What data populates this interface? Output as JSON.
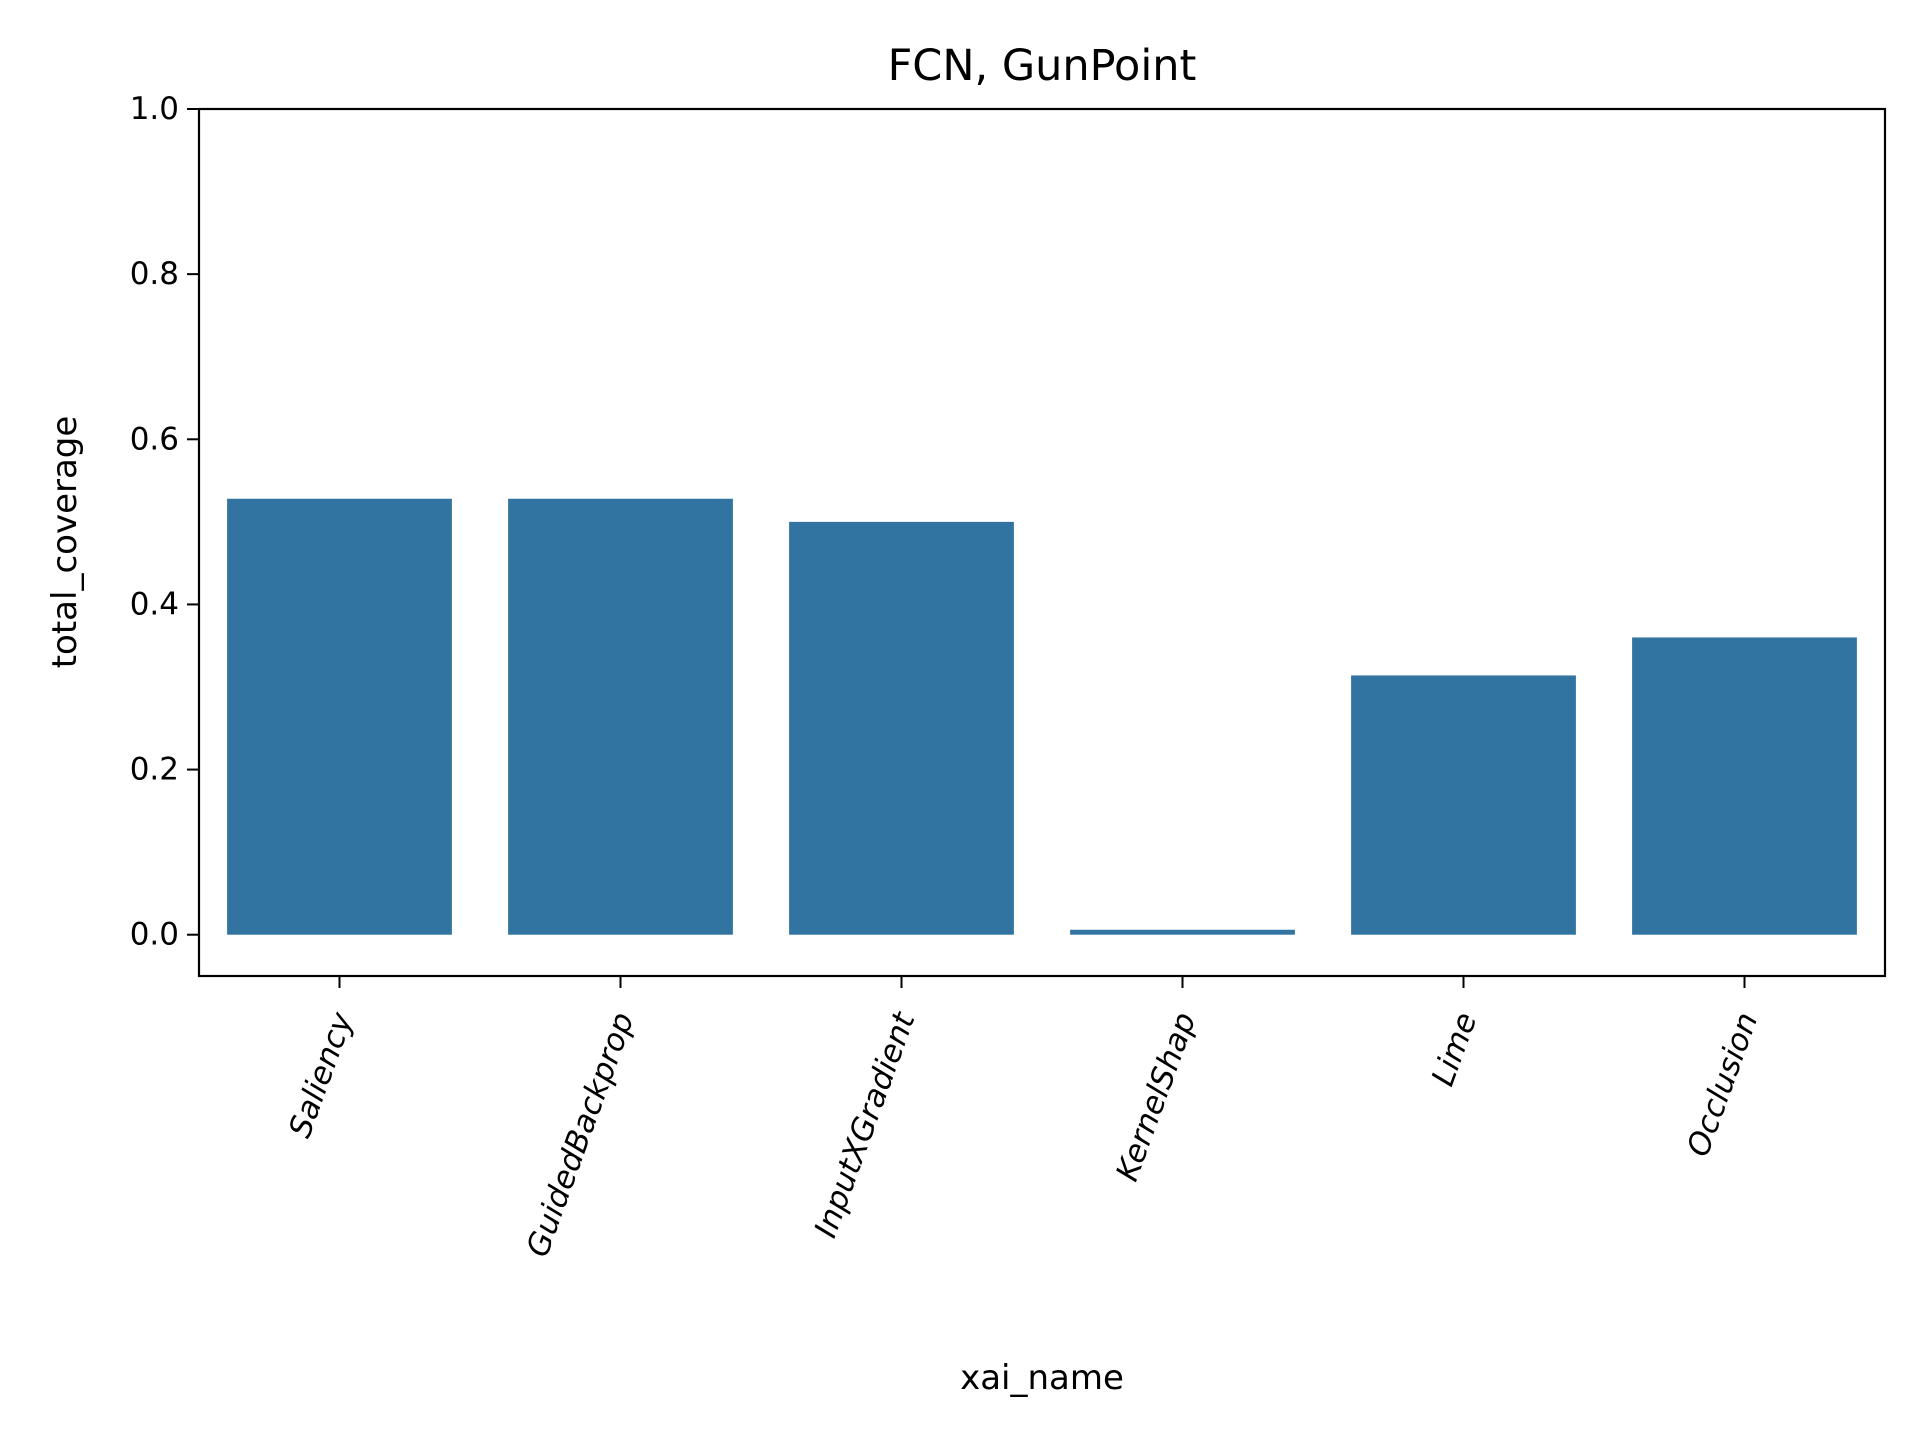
{
  "chart_data": {
    "type": "bar",
    "title": "FCN, GunPoint",
    "xlabel": "xai_name",
    "ylabel": "total_coverage",
    "ylim": [
      -0.05,
      1.0
    ],
    "yticks": [
      0.0,
      0.2,
      0.4,
      0.6,
      0.8,
      1.0
    ],
    "ytick_labels": [
      "0.0",
      "0.2",
      "0.4",
      "0.6",
      "0.8",
      "1.0"
    ],
    "categories": [
      "Saliency",
      "GuidedBackprop",
      "InputXGradient",
      "KernelShap",
      "Lime",
      "Occlusion"
    ],
    "values": [
      0.528,
      0.528,
      0.5,
      0.006,
      0.314,
      0.36
    ],
    "grid": false,
    "legend": "none",
    "bar_color": "#3274a1"
  }
}
